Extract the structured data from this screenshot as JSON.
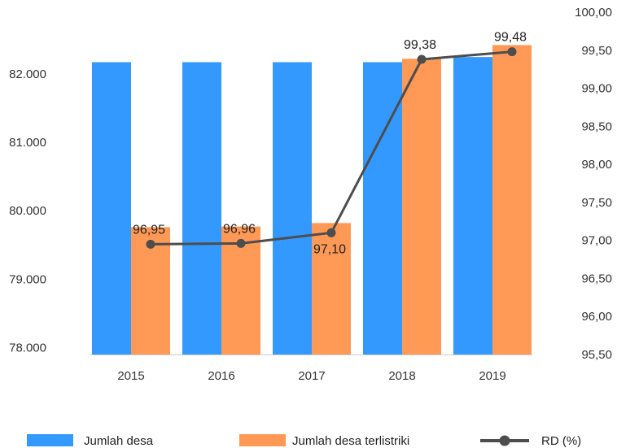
{
  "chart_data": {
    "type": "bar",
    "categories": [
      "2015",
      "2016",
      "2017",
      "2018",
      "2019"
    ],
    "series": [
      {
        "name": "Jumlah desa",
        "type": "bar",
        "axis": "left",
        "color": "#3399ff",
        "values": [
          82170,
          82170,
          82170,
          82170,
          82245
        ]
      },
      {
        "name": "Jumlah desa terlistriki",
        "type": "bar",
        "axis": "left",
        "color": "#ff9955",
        "values": [
          79760,
          79770,
          79820,
          82220,
          82420
        ]
      },
      {
        "name": "RD (%)",
        "type": "line",
        "axis": "right",
        "color": "#4d4d4d",
        "values": [
          96.95,
          96.96,
          97.1,
          99.38,
          99.48
        ],
        "value_labels": [
          "96,95",
          "96,96",
          "97,10",
          "99,38",
          "99,48"
        ]
      }
    ],
    "left_axis": {
      "min": 77900,
      "max": 82900,
      "ticks": [
        78000,
        79000,
        80000,
        81000,
        82000
      ],
      "tick_labels": [
        "78.000",
        "79.000",
        "80.000",
        "81.000",
        "82.000"
      ]
    },
    "right_axis": {
      "min": 95.5,
      "max": 100.0,
      "ticks": [
        95.5,
        96.0,
        96.5,
        97.0,
        97.5,
        98.0,
        98.5,
        99.0,
        99.5,
        100.0
      ],
      "tick_labels": [
        "95,50",
        "96,00",
        "96,50",
        "97,00",
        "97,50",
        "98,00",
        "98,50",
        "99,00",
        "99,50",
        "100,00"
      ]
    },
    "grid": false,
    "legend_position": "bottom"
  }
}
